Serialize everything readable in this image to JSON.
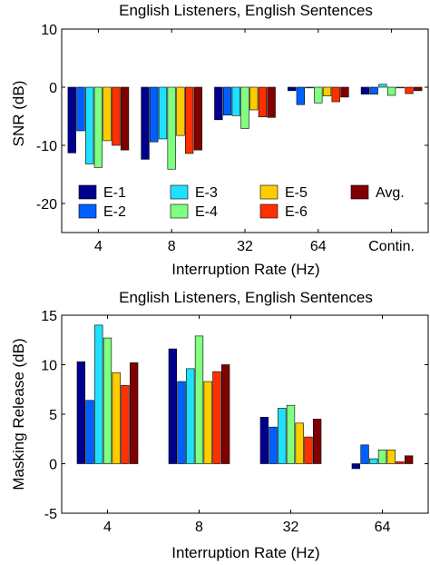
{
  "chart_data": [
    {
      "type": "bar",
      "title": "English Listeners, English Sentences",
      "xlabel": "Interruption Rate (Hz)",
      "ylabel": "SNR (dB)",
      "categories": [
        "4",
        "8",
        "32",
        "64",
        "Contin."
      ],
      "ylim": [
        -25,
        10
      ],
      "yticks": [
        10,
        0,
        -10,
        -20
      ],
      "ytick_labels": [
        "10",
        "0",
        "-10",
        "-20"
      ],
      "grid": false,
      "legend_position": "bottom-inside",
      "series": [
        {
          "name": "E-1",
          "color": "#00008f",
          "values": [
            -11.3,
            -12.4,
            -5.6,
            -0.6,
            -1.2
          ]
        },
        {
          "name": "E-2",
          "color": "#0060ff",
          "values": [
            -7.5,
            -9.4,
            -4.8,
            -3.0,
            -1.2
          ]
        },
        {
          "name": "E-3",
          "color": "#20e0ff",
          "values": [
            -13.2,
            -8.9,
            -4.9,
            0.0,
            0.5
          ]
        },
        {
          "name": "E-4",
          "color": "#80ff80",
          "values": [
            -13.8,
            -14.1,
            -7.1,
            -2.7,
            -1.4
          ]
        },
        {
          "name": "E-5",
          "color": "#ffcc00",
          "values": [
            -9.2,
            -8.3,
            -3.9,
            -1.5,
            0.0
          ]
        },
        {
          "name": "E-6",
          "color": "#ff3000",
          "values": [
            -10.0,
            -11.4,
            -5.1,
            -2.5,
            -1.1
          ]
        },
        {
          "name": "Avg.",
          "color": "#800000",
          "values": [
            -10.8,
            -10.8,
            -5.2,
            -1.7,
            -0.6
          ]
        }
      ]
    },
    {
      "type": "bar",
      "title": "English Listeners, English Sentences",
      "xlabel": "Interruption Rate (Hz)",
      "ylabel": "Masking Release (dB)",
      "categories": [
        "4",
        "8",
        "32",
        "64"
      ],
      "ylim": [
        -5,
        15
      ],
      "yticks": [
        15,
        10,
        5,
        0,
        -5
      ],
      "ytick_labels": [
        "15",
        "10",
        "5",
        "0",
        "-5"
      ],
      "grid": false,
      "series": [
        {
          "name": "E-1",
          "color": "#00008f",
          "values": [
            10.3,
            11.6,
            4.7,
            -0.5
          ]
        },
        {
          "name": "E-2",
          "color": "#0060ff",
          "values": [
            6.4,
            8.3,
            3.7,
            1.9
          ]
        },
        {
          "name": "E-3",
          "color": "#20e0ff",
          "values": [
            14.0,
            9.6,
            5.6,
            0.5
          ]
        },
        {
          "name": "E-4",
          "color": "#80ff80",
          "values": [
            12.7,
            12.9,
            5.9,
            1.4
          ]
        },
        {
          "name": "E-5",
          "color": "#ffcc00",
          "values": [
            9.2,
            8.3,
            4.1,
            1.4
          ]
        },
        {
          "name": "E-6",
          "color": "#ff3000",
          "values": [
            7.9,
            9.3,
            2.7,
            0.2
          ]
        },
        {
          "name": "Avg.",
          "color": "#800000",
          "values": [
            10.2,
            10.0,
            4.5,
            0.8
          ]
        }
      ]
    }
  ]
}
